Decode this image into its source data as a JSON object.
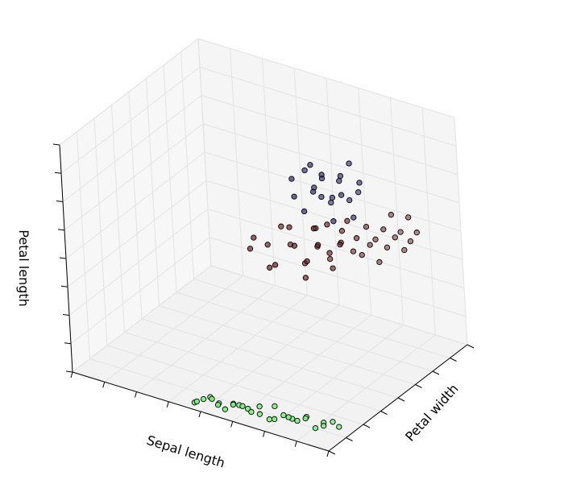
{
  "chart_data": {
    "type": "scatter",
    "projection": "3d",
    "title": "",
    "xlabel": "Sepal length",
    "ylabel": "Petal width",
    "zlabel": "Petal length",
    "tick_labels_shown": false,
    "grid": true,
    "colors": {
      "class0": "#7cf07c",
      "class1": "#6b1a1a",
      "class2": "#2b2670"
    },
    "series": [
      {
        "values": [
          {
            "x": 0.45,
            "y": 0.08,
            "z": 0.0
          },
          {
            "x": 0.47,
            "y": 0.05,
            "z": 0.02
          },
          {
            "x": 0.48,
            "y": 0.1,
            "z": 0.02
          },
          {
            "x": 0.5,
            "y": 0.12,
            "z": 0.03
          },
          {
            "x": 0.52,
            "y": 0.08,
            "z": 0.04
          },
          {
            "x": 0.53,
            "y": 0.13,
            "z": 0.01
          },
          {
            "x": 0.55,
            "y": 0.06,
            "z": 0.03
          },
          {
            "x": 0.56,
            "y": 0.11,
            "z": 0.0
          },
          {
            "x": 0.58,
            "y": 0.15,
            "z": 0.02
          },
          {
            "x": 0.6,
            "y": 0.09,
            "z": 0.04
          },
          {
            "x": 0.61,
            "y": 0.13,
            "z": 0.03
          },
          {
            "x": 0.63,
            "y": 0.17,
            "z": 0.01
          },
          {
            "x": 0.64,
            "y": 0.08,
            "z": 0.05
          },
          {
            "x": 0.66,
            "y": 0.12,
            "z": 0.02
          },
          {
            "x": 0.68,
            "y": 0.16,
            "z": 0.04
          },
          {
            "x": 0.7,
            "y": 0.1,
            "z": 0.03
          },
          {
            "x": 0.72,
            "y": 0.15,
            "z": 0.0
          },
          {
            "x": 0.73,
            "y": 0.19,
            "z": 0.05
          },
          {
            "x": 0.75,
            "y": 0.12,
            "z": 0.02
          },
          {
            "x": 0.77,
            "y": 0.17,
            "z": 0.03
          },
          {
            "x": 0.79,
            "y": 0.21,
            "z": 0.01
          },
          {
            "x": 0.8,
            "y": 0.14,
            "z": 0.04
          },
          {
            "x": 0.82,
            "y": 0.18,
            "z": 0.02
          },
          {
            "x": 0.84,
            "y": 0.23,
            "z": 0.03
          },
          {
            "x": 0.86,
            "y": 0.16,
            "z": 0.05
          },
          {
            "x": 0.88,
            "y": 0.21,
            "z": 0.0
          },
          {
            "x": 0.9,
            "y": 0.25,
            "z": 0.02
          },
          {
            "x": 0.92,
            "y": 0.19,
            "z": 0.03
          },
          {
            "x": 0.94,
            "y": 0.24,
            "z": 0.04
          },
          {
            "x": 0.95,
            "y": 0.28,
            "z": 0.01
          }
        ]
      },
      {
        "values": [
          {
            "x": 0.52,
            "y": 0.62,
            "z": 0.55
          },
          {
            "x": 0.55,
            "y": 0.58,
            "z": 0.62
          },
          {
            "x": 0.58,
            "y": 0.65,
            "z": 0.58
          },
          {
            "x": 0.6,
            "y": 0.6,
            "z": 0.5
          },
          {
            "x": 0.62,
            "y": 0.7,
            "z": 0.66
          },
          {
            "x": 0.64,
            "y": 0.55,
            "z": 0.54
          },
          {
            "x": 0.66,
            "y": 0.68,
            "z": 0.6
          },
          {
            "x": 0.68,
            "y": 0.62,
            "z": 0.7
          },
          {
            "x": 0.7,
            "y": 0.72,
            "z": 0.52
          },
          {
            "x": 0.71,
            "y": 0.58,
            "z": 0.64
          },
          {
            "x": 0.72,
            "y": 0.66,
            "z": 0.48
          },
          {
            "x": 0.74,
            "y": 0.75,
            "z": 0.68
          },
          {
            "x": 0.75,
            "y": 0.6,
            "z": 0.58
          },
          {
            "x": 0.76,
            "y": 0.7,
            "z": 0.62
          },
          {
            "x": 0.77,
            "y": 0.64,
            "z": 0.72
          },
          {
            "x": 0.78,
            "y": 0.78,
            "z": 0.55
          },
          {
            "x": 0.79,
            "y": 0.62,
            "z": 0.66
          },
          {
            "x": 0.8,
            "y": 0.72,
            "z": 0.6
          },
          {
            "x": 0.81,
            "y": 0.68,
            "z": 0.74
          },
          {
            "x": 0.82,
            "y": 0.8,
            "z": 0.63
          },
          {
            "x": 0.83,
            "y": 0.66,
            "z": 0.56
          },
          {
            "x": 0.84,
            "y": 0.76,
            "z": 0.7
          },
          {
            "x": 0.85,
            "y": 0.7,
            "z": 0.66
          },
          {
            "x": 0.86,
            "y": 0.82,
            "z": 0.6
          },
          {
            "x": 0.87,
            "y": 0.74,
            "z": 0.76
          },
          {
            "x": 0.88,
            "y": 0.86,
            "z": 0.58
          },
          {
            "x": 0.89,
            "y": 0.78,
            "z": 0.68
          },
          {
            "x": 0.9,
            "y": 0.9,
            "z": 0.62
          },
          {
            "x": 0.91,
            "y": 0.84,
            "z": 0.72
          },
          {
            "x": 0.92,
            "y": 0.94,
            "z": 0.54
          },
          {
            "x": 0.93,
            "y": 0.88,
            "z": 0.66
          },
          {
            "x": 0.94,
            "y": 0.98,
            "z": 0.6
          },
          {
            "x": 0.95,
            "y": 0.92,
            "z": 0.7
          },
          {
            "x": 0.96,
            "y": 1.02,
            "z": 0.64
          },
          {
            "x": 0.97,
            "y": 0.96,
            "z": 0.76
          },
          {
            "x": 0.98,
            "y": 1.06,
            "z": 0.58
          },
          {
            "x": 0.99,
            "y": 1.0,
            "z": 0.68
          },
          {
            "x": 1.0,
            "y": 1.08,
            "z": 0.62
          },
          {
            "x": 1.01,
            "y": 1.04,
            "z": 0.74
          },
          {
            "x": 1.02,
            "y": 1.1,
            "z": 0.66
          }
        ]
      },
      {
        "values": [
          {
            "x": 0.7,
            "y": 0.62,
            "z": 0.92
          },
          {
            "x": 0.72,
            "y": 0.58,
            "z": 0.86
          },
          {
            "x": 0.74,
            "y": 0.66,
            "z": 0.96
          },
          {
            "x": 0.75,
            "y": 0.6,
            "z": 0.8
          },
          {
            "x": 0.76,
            "y": 0.7,
            "z": 0.88
          },
          {
            "x": 0.77,
            "y": 0.64,
            "z": 1.0
          },
          {
            "x": 0.78,
            "y": 0.72,
            "z": 0.84
          },
          {
            "x": 0.79,
            "y": 0.6,
            "z": 0.9
          },
          {
            "x": 0.8,
            "y": 0.68,
            "z": 0.94
          },
          {
            "x": 0.81,
            "y": 0.74,
            "z": 0.82
          },
          {
            "x": 0.82,
            "y": 0.62,
            "z": 0.98
          },
          {
            "x": 0.83,
            "y": 0.7,
            "z": 0.86
          },
          {
            "x": 0.84,
            "y": 0.76,
            "z": 0.92
          },
          {
            "x": 0.85,
            "y": 0.64,
            "z": 0.78
          },
          {
            "x": 0.86,
            "y": 0.72,
            "z": 0.96
          },
          {
            "x": 0.87,
            "y": 0.78,
            "z": 0.84
          },
          {
            "x": 0.88,
            "y": 0.66,
            "z": 0.9
          },
          {
            "x": 0.89,
            "y": 0.74,
            "z": 1.02
          },
          {
            "x": 0.9,
            "y": 0.8,
            "z": 0.88
          },
          {
            "x": 0.91,
            "y": 0.7,
            "z": 0.8
          },
          {
            "x": 0.92,
            "y": 0.76,
            "z": 0.94
          }
        ]
      }
    ]
  }
}
